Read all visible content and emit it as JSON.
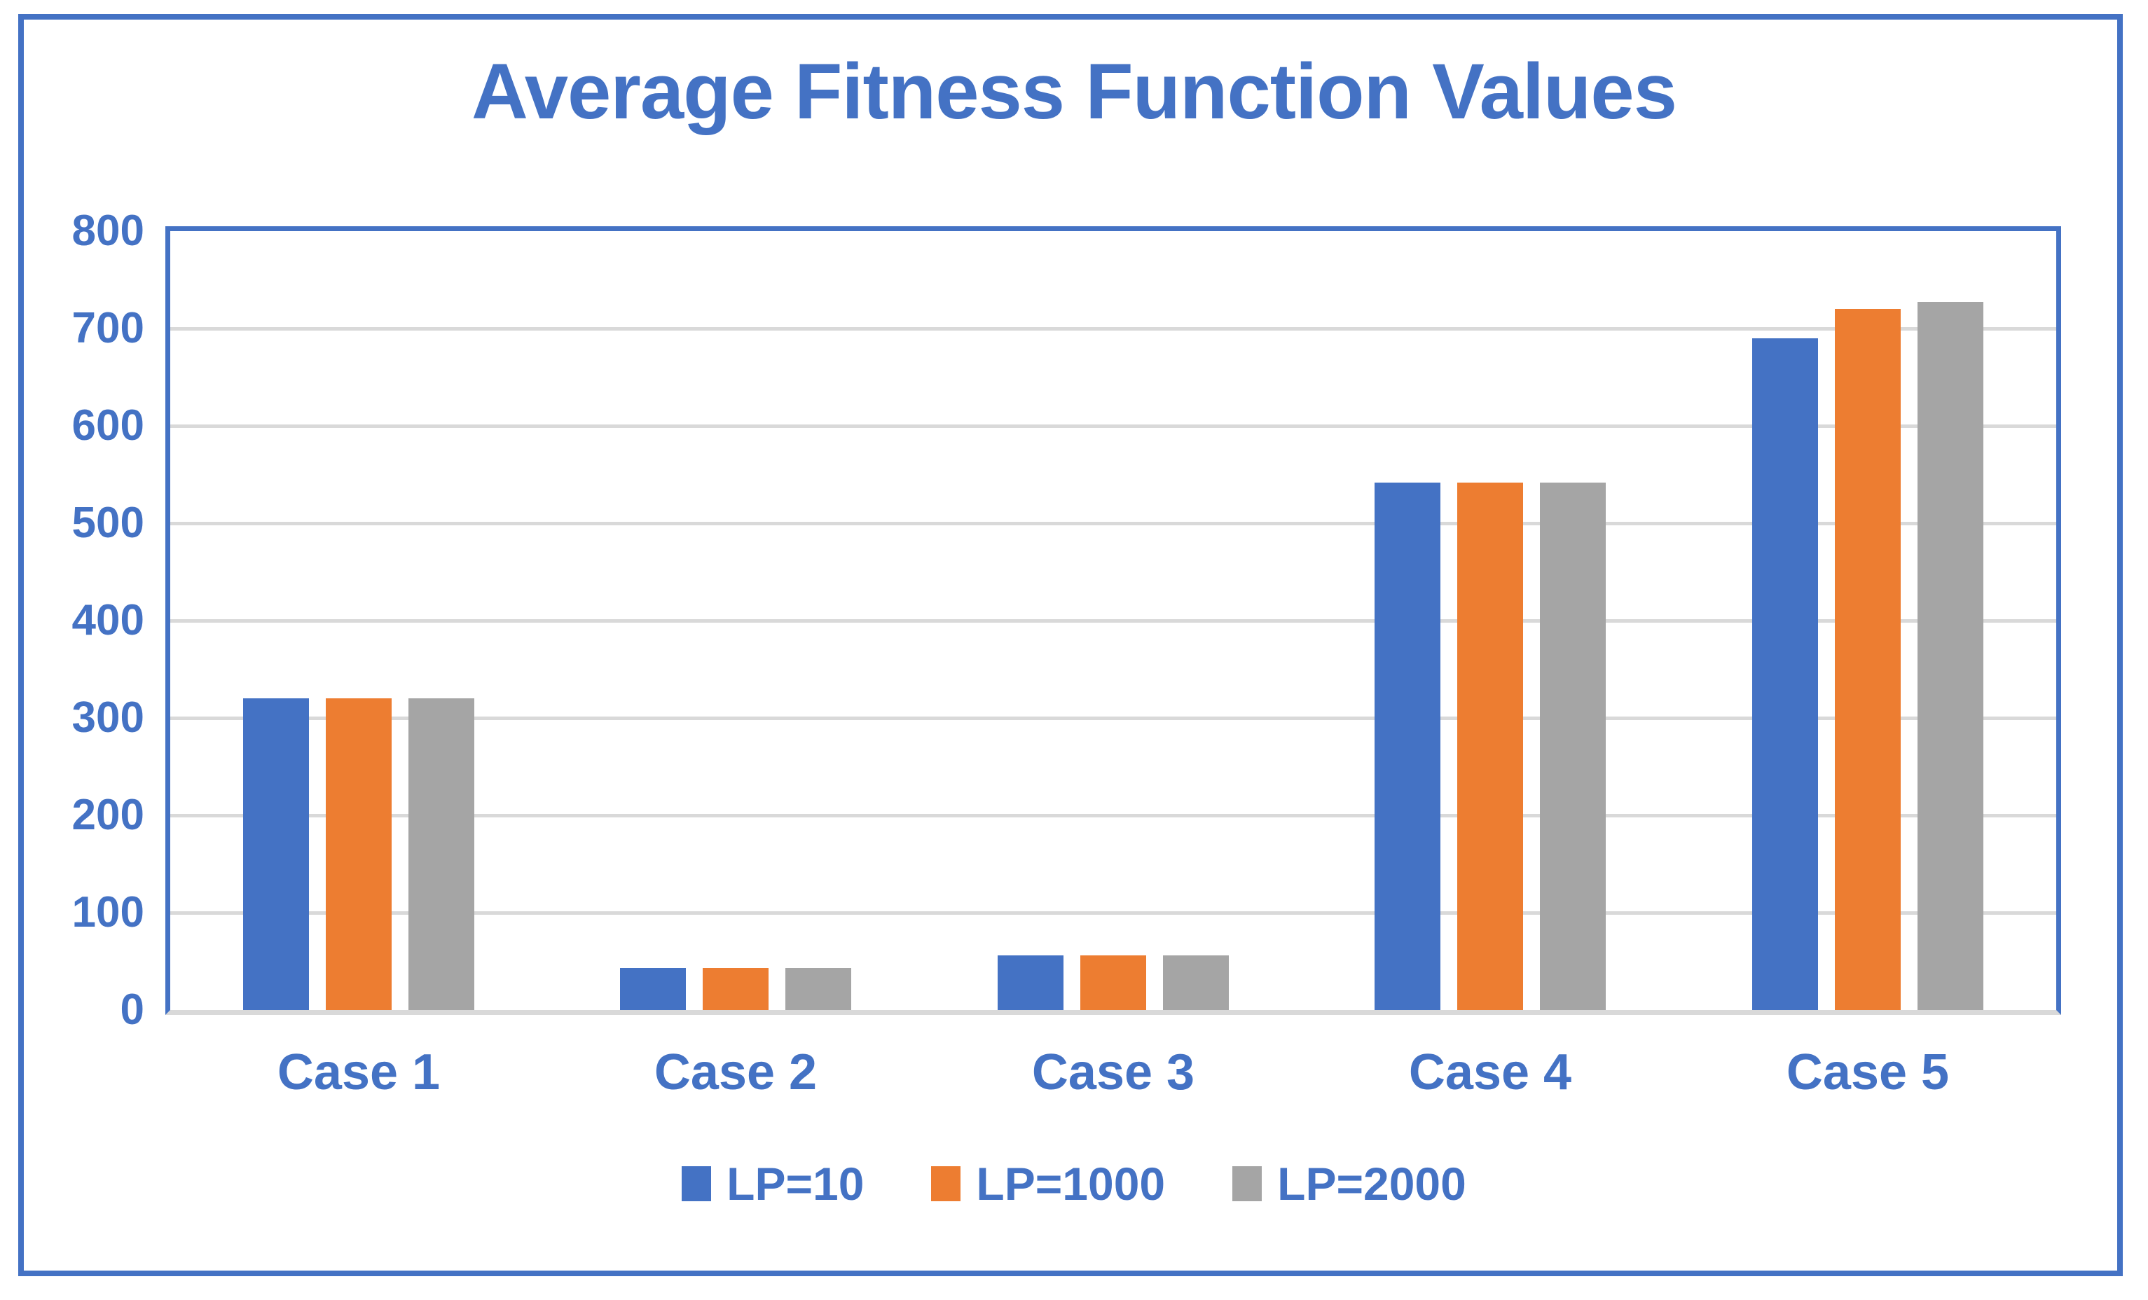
{
  "chart_data": {
    "type": "bar",
    "title": "Average Fitness Function Values",
    "categories": [
      "Case 1",
      "Case 2",
      "Case 3",
      "Case 4",
      "Case 5"
    ],
    "series": [
      {
        "name": "LP=10",
        "color": "#4472C4",
        "values": [
          320,
          43,
          56,
          542,
          690
        ]
      },
      {
        "name": "LP=1000",
        "color": "#ED7D31",
        "values": [
          320,
          43,
          56,
          542,
          720
        ]
      },
      {
        "name": "LP=2000",
        "color": "#A5A5A5",
        "values": [
          320,
          43,
          56,
          542,
          727
        ]
      }
    ],
    "xlabel": "",
    "ylabel": "",
    "ylim": [
      0,
      800
    ],
    "yticks": [
      800,
      700,
      600,
      500,
      400,
      300,
      200,
      100,
      0
    ],
    "grid": true,
    "legend_position": "bottom"
  },
  "colors": {
    "accent_blue": "#4472C4",
    "gridline_gray": "#D9D9D9",
    "background": "#ffffff"
  }
}
